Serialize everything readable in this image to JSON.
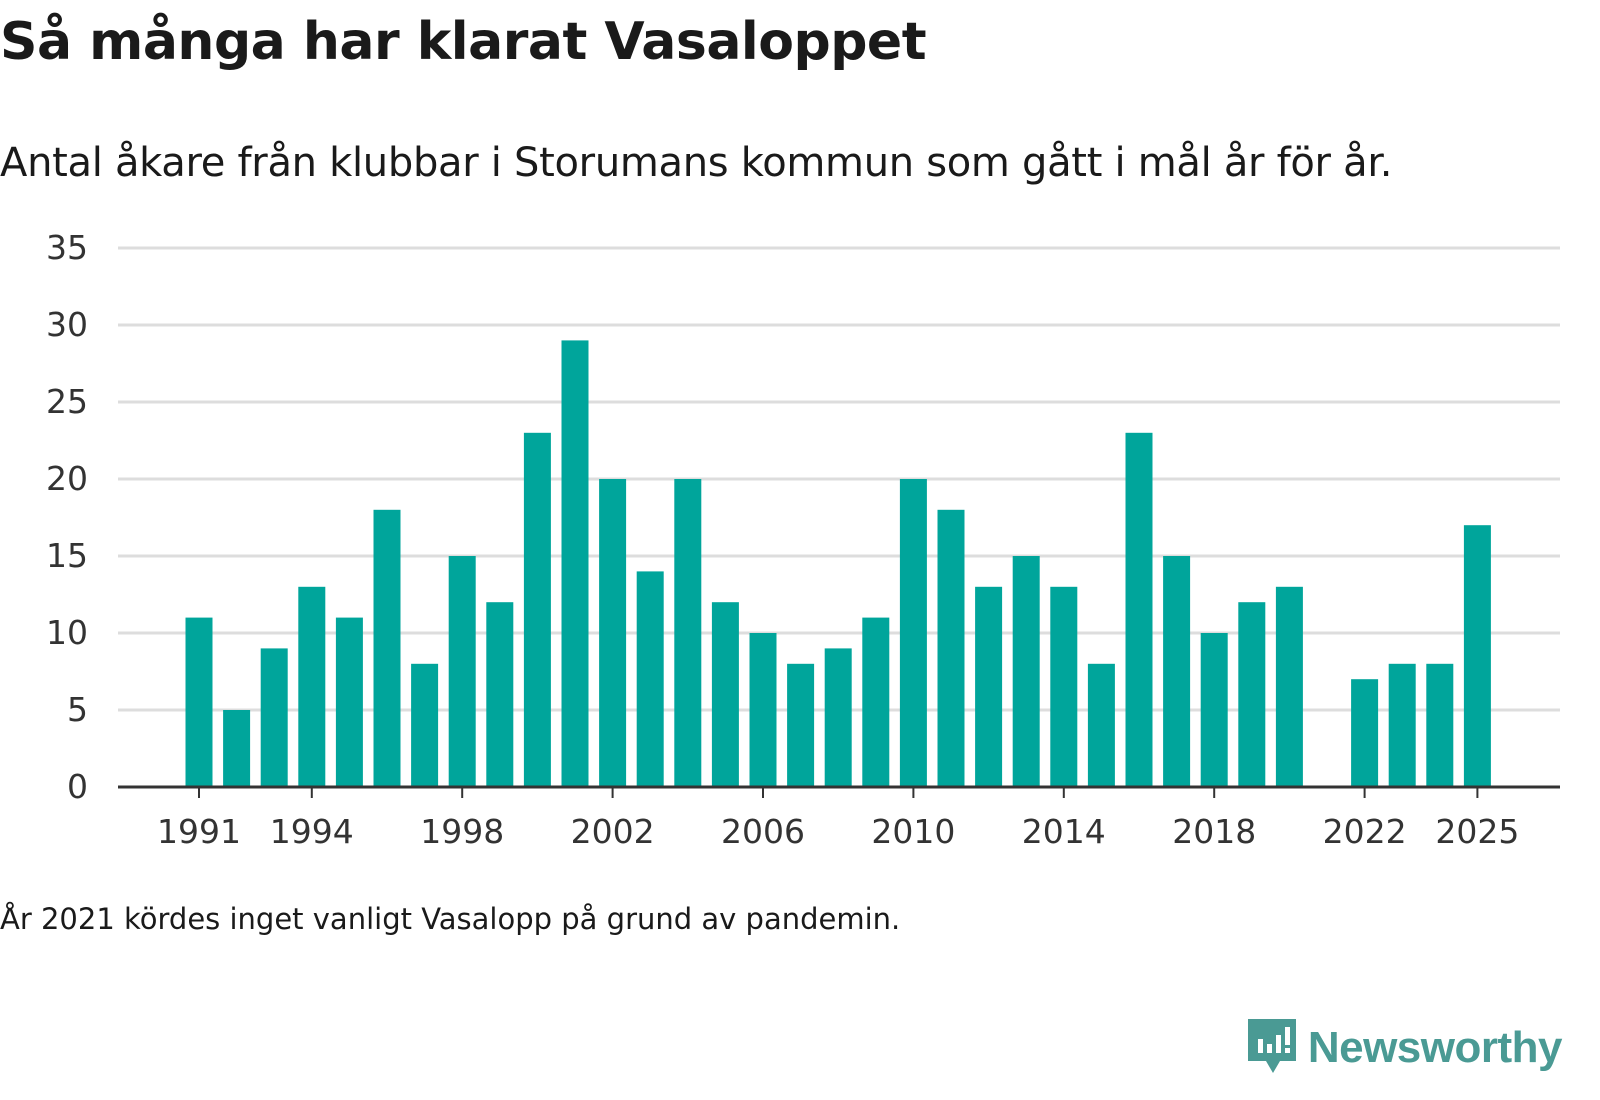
{
  "title": "Så många har klarat Vasaloppet",
  "subtitle": "Antal åkare från klubbar i Storumans kommun som gått i mål år för år.",
  "note": "År 2021 kördes inget vanligt Vasalopp på grund av pandemin.",
  "brand": {
    "name": "Newsworthy",
    "icon": "newsworthy-logo-icon",
    "color": "#4a9a94"
  },
  "colors": {
    "bar": "#00a59b",
    "grid": "#dddddd",
    "axis": "#333333",
    "text": "#333333"
  },
  "chart_data": {
    "type": "bar",
    "title": "Så många har klarat Vasaloppet",
    "xlabel": "",
    "ylabel": "",
    "ylim": [
      0,
      35
    ],
    "yticks": [
      0,
      5,
      10,
      15,
      20,
      25,
      30,
      35
    ],
    "xticks": [
      1991,
      1994,
      1998,
      2002,
      2006,
      2010,
      2014,
      2018,
      2022,
      2025
    ],
    "grid": true,
    "categories": [
      1991,
      1992,
      1993,
      1994,
      1995,
      1996,
      1997,
      1998,
      1999,
      2000,
      2001,
      2002,
      2003,
      2004,
      2005,
      2006,
      2007,
      2008,
      2009,
      2010,
      2011,
      2012,
      2013,
      2014,
      2015,
      2016,
      2017,
      2018,
      2019,
      2020,
      2021,
      2022,
      2023,
      2024,
      2025
    ],
    "values": [
      11,
      5,
      9,
      13,
      11,
      18,
      8,
      15,
      12,
      23,
      29,
      20,
      14,
      20,
      12,
      10,
      8,
      9,
      11,
      20,
      18,
      13,
      15,
      13,
      8,
      23,
      15,
      10,
      12,
      13,
      null,
      7,
      8,
      8,
      17
    ]
  }
}
